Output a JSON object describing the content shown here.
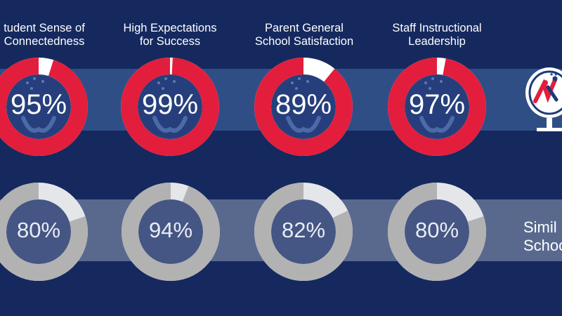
{
  "chart_data": [
    {
      "type": "donut",
      "categories": [
        "Student Sense of Connectedness",
        "High Expectations for Success",
        "Parent General School Satisfaction",
        "Staff Instructional Leadership"
      ],
      "header_lines": [
        [
          "tudent Sense of",
          "Connectedness"
        ],
        [
          "High Expectations",
          "for Success"
        ],
        [
          "Parent General",
          "School Satisfaction"
        ],
        [
          "Staff Instructional",
          "Leadership"
        ]
      ],
      "values": [
        95,
        99,
        89,
        97
      ],
      "labels": [
        "95%",
        "99%",
        "89%",
        "97%"
      ],
      "ylim": [
        0,
        100
      ],
      "colors": {
        "fill": "#e21e3c",
        "remainder": "#ffffff"
      }
    },
    {
      "type": "donut",
      "series_label_lines": [
        "Simil",
        "Schoo"
      ],
      "values": [
        80,
        94,
        82,
        80
      ],
      "labels": [
        "80%",
        "94%",
        "82%",
        "80%"
      ],
      "ylim": [
        0,
        100
      ],
      "colors": {
        "fill": "#b2b2b2",
        "remainder": "#e4e6ea"
      }
    }
  ],
  "colors": {
    "background": "#15295f",
    "band_top": "#2f4e86",
    "band_bottom": "#59698e",
    "center_top": "#263f7c",
    "center_bottom": "#455684"
  },
  "icons": {
    "school_logo": "globe-logo-icon"
  }
}
